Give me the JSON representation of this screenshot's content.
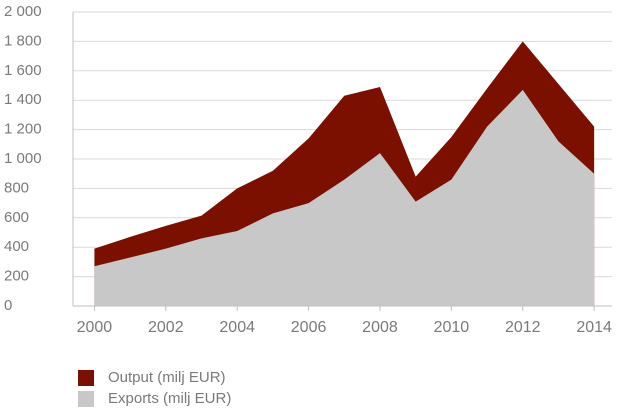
{
  "chart_data": {
    "type": "area",
    "x": [
      2000,
      2001,
      2002,
      2003,
      2004,
      2005,
      2006,
      2007,
      2008,
      2009,
      2010,
      2011,
      2012,
      2013,
      2014
    ],
    "series": [
      {
        "name": "Output (milj EUR)",
        "color": "#7b1000",
        "values": [
          390,
          470,
          545,
          615,
          800,
          920,
          1140,
          1430,
          1490,
          880,
          1150,
          1480,
          1800,
          1510,
          1220
        ]
      },
      {
        "name": "Exports (milj EUR)",
        "color": "#c8c8c8",
        "values": [
          270,
          330,
          390,
          460,
          510,
          630,
          700,
          860,
          1040,
          710,
          860,
          1220,
          1470,
          1120,
          900
        ]
      }
    ],
    "xlim": [
      1999.4,
      2014.5
    ],
    "xticks": [
      2000,
      2002,
      2004,
      2006,
      2008,
      2010,
      2012,
      2014
    ],
    "ylim": [
      0,
      2000
    ],
    "yticks": [
      0,
      200,
      400,
      600,
      800,
      {
        "value": 1000,
        "label": "1 000"
      },
      {
        "value": 1200,
        "label": "1 200"
      },
      {
        "value": 1400,
        "label": "1 400"
      },
      {
        "value": 1600,
        "label": "1 600"
      },
      {
        "value": 1800,
        "label": "1 800"
      },
      {
        "value": 2000,
        "label": "2 000"
      }
    ],
    "grid": true,
    "legend": "bottom-left"
  }
}
